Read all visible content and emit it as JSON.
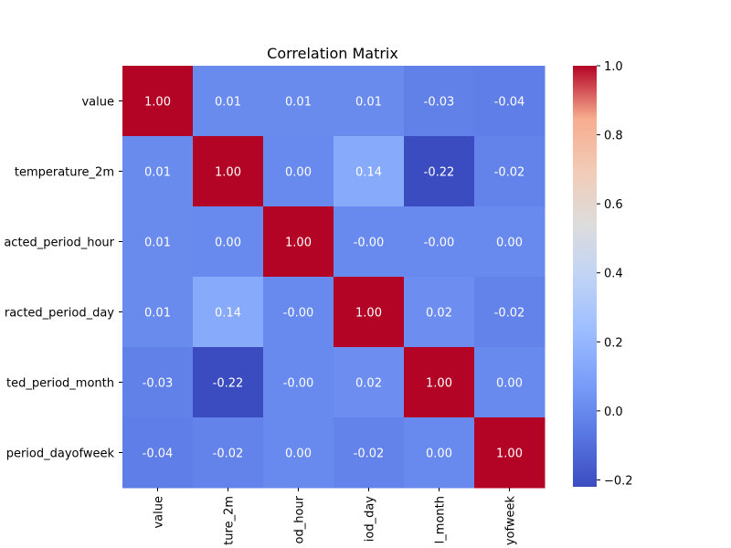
{
  "chart_data": {
    "type": "heatmap",
    "title": "Correlation Matrix",
    "row_labels": [
      "value",
      "temperature_2m",
      "acted_period_hour",
      "racted_period_day",
      "ted_period_month",
      "period_dayofweek"
    ],
    "col_labels": [
      "value",
      "ture_2m",
      "od_hour",
      "iod_day",
      "l_month",
      "yofweek"
    ],
    "values": [
      [
        1.0,
        0.01,
        0.01,
        0.01,
        -0.03,
        -0.04
      ],
      [
        0.01,
        1.0,
        0.0,
        0.14,
        -0.22,
        -0.02
      ],
      [
        0.01,
        0.0,
        1.0,
        -0.0,
        -0.0,
        0.0
      ],
      [
        0.01,
        0.14,
        -0.0,
        1.0,
        0.02,
        -0.02
      ],
      [
        -0.03,
        -0.22,
        -0.0,
        0.02,
        1.0,
        0.0
      ],
      [
        -0.04,
        -0.02,
        0.0,
        -0.02,
        0.0,
        1.0
      ]
    ],
    "annotations": [
      [
        "1.00",
        "0.01",
        "0.01",
        "0.01",
        "-0.03",
        "-0.04"
      ],
      [
        "0.01",
        "1.00",
        "0.00",
        "0.14",
        "-0.22",
        "-0.02"
      ],
      [
        "0.01",
        "0.00",
        "1.00",
        "-0.00",
        "-0.00",
        "0.00"
      ],
      [
        "0.01",
        "0.14",
        "-0.00",
        "1.00",
        "0.02",
        "-0.02"
      ],
      [
        "-0.03",
        "-0.22",
        "-0.00",
        "0.02",
        "1.00",
        "0.00"
      ],
      [
        "-0.04",
        "-0.02",
        "0.00",
        "-0.02",
        "0.00",
        "1.00"
      ]
    ],
    "colormap": "coolwarm",
    "vmin": -0.22,
    "vmax": 1.0,
    "colorbar_ticks": [
      1.0,
      0.8,
      0.6,
      0.4,
      0.2,
      0.0,
      -0.2
    ],
    "colorbar_tick_labels": [
      "1.0",
      "0.8",
      "0.6",
      "0.4",
      "0.2",
      "0.0",
      "−0.2"
    ]
  }
}
